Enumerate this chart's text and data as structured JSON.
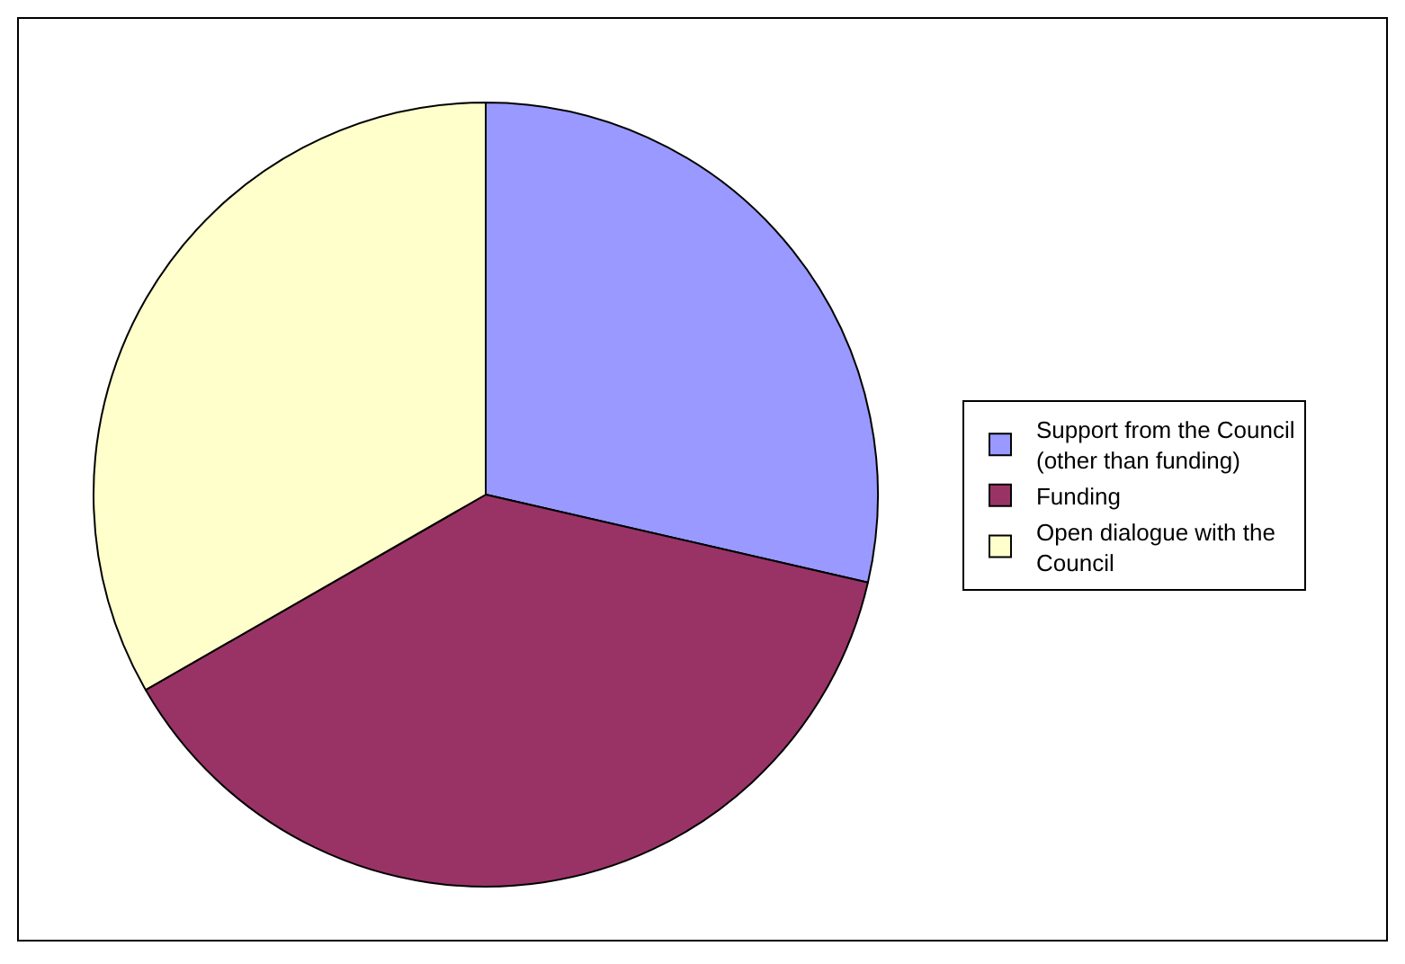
{
  "chart_data": {
    "type": "pie",
    "categories": [
      "Support from the Council (other than funding)",
      "Funding",
      "Open dialogue with the Council"
    ],
    "values": [
      28.6,
      38.1,
      33.3
    ],
    "colors": [
      "#9999ff",
      "#993366",
      "#ffffcc"
    ],
    "legend": "right"
  }
}
